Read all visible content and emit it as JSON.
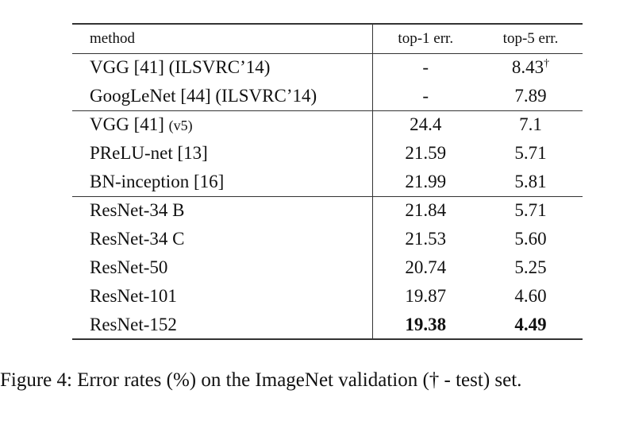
{
  "table": {
    "headers": {
      "method": "method",
      "top1": "top-1 err.",
      "top5": "top-5 err."
    },
    "groups": [
      [
        {
          "method": "VGG [41] (ILSVRC’14)",
          "method_suffix": "",
          "top1": "-",
          "top5": "8.43",
          "top5_mark": "†",
          "bold": false
        },
        {
          "method": "GoogLeNet [44] (ILSVRC’14)",
          "method_suffix": "",
          "top1": "-",
          "top5": "7.89",
          "top5_mark": "",
          "bold": false
        }
      ],
      [
        {
          "method": "VGG [41] ",
          "method_suffix": "(v5)",
          "top1": "24.4",
          "top5": "7.1",
          "top5_mark": "",
          "bold": false
        },
        {
          "method": "PReLU-net [13]",
          "method_suffix": "",
          "top1": "21.59",
          "top5": "5.71",
          "top5_mark": "",
          "bold": false
        },
        {
          "method": "BN-inception [16]",
          "method_suffix": "",
          "top1": "21.99",
          "top5": "5.81",
          "top5_mark": "",
          "bold": false
        }
      ],
      [
        {
          "method": "ResNet-34 B",
          "method_suffix": "",
          "top1": "21.84",
          "top5": "5.71",
          "top5_mark": "",
          "bold": false
        },
        {
          "method": "ResNet-34 C",
          "method_suffix": "",
          "top1": "21.53",
          "top5": "5.60",
          "top5_mark": "",
          "bold": false
        },
        {
          "method": "ResNet-50",
          "method_suffix": "",
          "top1": "20.74",
          "top5": "5.25",
          "top5_mark": "",
          "bold": false
        },
        {
          "method": "ResNet-101",
          "method_suffix": "",
          "top1": "19.87",
          "top5": "4.60",
          "top5_mark": "",
          "bold": false
        },
        {
          "method": "ResNet-152",
          "method_suffix": "",
          "top1": "19.38",
          "top5": "4.49",
          "top5_mark": "",
          "bold": true
        }
      ]
    ]
  },
  "caption": "Figure 4: Error rates (%) on the ImageNet validation († - test) set."
}
